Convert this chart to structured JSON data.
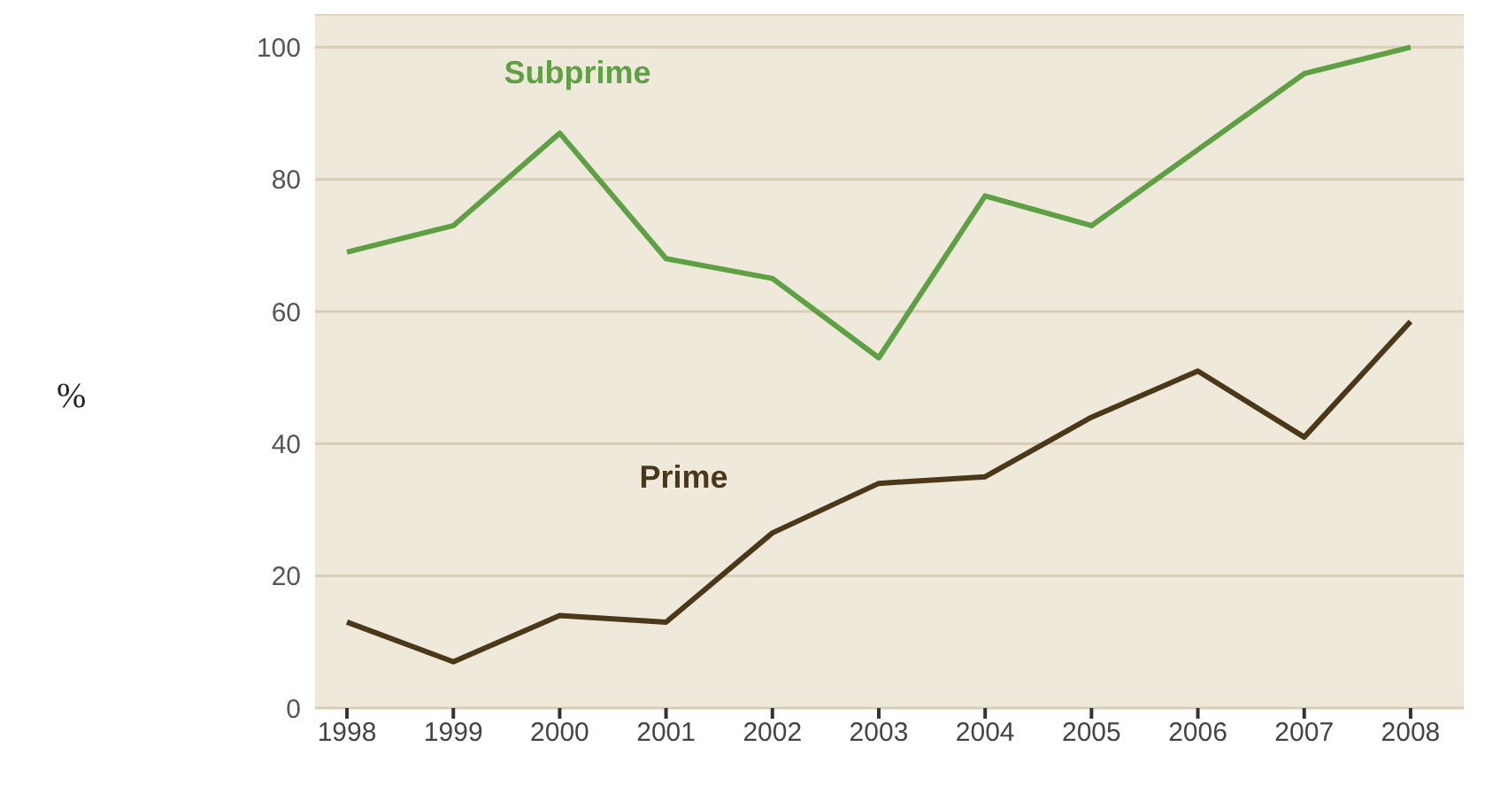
{
  "chart_data": {
    "type": "line",
    "annotations": [
      "%"
    ],
    "x": [
      1998,
      1999,
      2000,
      2001,
      2002,
      2003,
      2004,
      2005,
      2006,
      2007,
      2008
    ],
    "series": [
      {
        "name": "Subprime",
        "color": "#5fa044",
        "values": [
          69,
          73,
          87,
          68,
          65,
          53,
          77.5,
          73,
          84.5,
          96,
          100
        ]
      },
      {
        "name": "Prime",
        "color": "#4a3818",
        "values": [
          13,
          7,
          14,
          13,
          26.5,
          34,
          35,
          44,
          51,
          41,
          58.5
        ]
      }
    ],
    "xlim": [
      1997.7,
      2008.5
    ],
    "xticks": [
      1998,
      1999,
      2000,
      2001,
      2002,
      2003,
      2004,
      2005,
      2006,
      2007,
      2008
    ],
    "ylim": [
      0,
      105
    ],
    "yticks": [
      0,
      20,
      40,
      60,
      80,
      100
    ],
    "grid": "y",
    "marker": "none",
    "line_style": "solid",
    "legend": false
  }
}
